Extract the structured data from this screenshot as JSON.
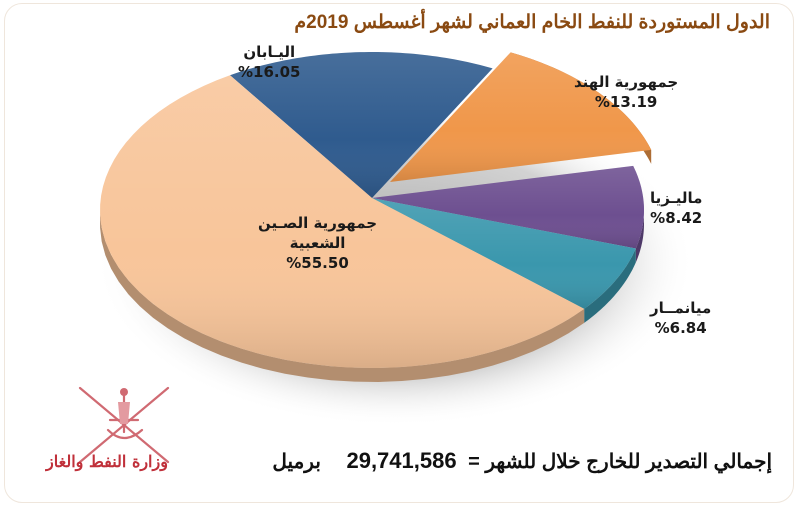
{
  "title": "الدول المستوردة للنفط الخام العماني لشهر أغسطس 2019م",
  "labels": {
    "japan": {
      "name": "اليـابان",
      "pct": "%16.05"
    },
    "india": {
      "name": "جمهورية الهند",
      "pct": "%13.19"
    },
    "malaysia": {
      "name": "ماليـزيا",
      "pct": "%8.42"
    },
    "myanmar": {
      "name": "ميانمــار",
      "pct": "%6.84"
    },
    "china": {
      "name": "جمهورية الصـين",
      "name2": "الشعبية",
      "pct": "%55.50"
    }
  },
  "total": {
    "label": "إجمالي التصدير للخارج خلال للشهر =",
    "value": "29,741,586",
    "unit": "برميل"
  },
  "logo": {
    "text": "وزارة النفط والغاز",
    "icon": "oman-khanjar-emblem-icon"
  },
  "colors": {
    "japan": "#2f5b8e",
    "india": "#f0974a",
    "malaysia": "#6d4f90",
    "myanmar": "#3a97ad",
    "china": "#f8c59a",
    "title": "#8a4a12",
    "logo": "#c0303a"
  },
  "chart_data": {
    "type": "pie",
    "title": "الدول المستوردة للنفط الخام العماني لشهر أغسطس 2019م",
    "categories": [
      "اليابان",
      "جمهورية الهند",
      "ماليزيا",
      "ميانمار",
      "جمهورية الصين الشعبية"
    ],
    "values": [
      16.05,
      13.19,
      8.42,
      6.84,
      55.5
    ],
    "unit": "%",
    "exploded": [
      "جمهورية الهند"
    ],
    "style": "3d",
    "annotation": "إجمالي التصدير للخارج خلال للشهر = 29,741,586 برميل"
  }
}
